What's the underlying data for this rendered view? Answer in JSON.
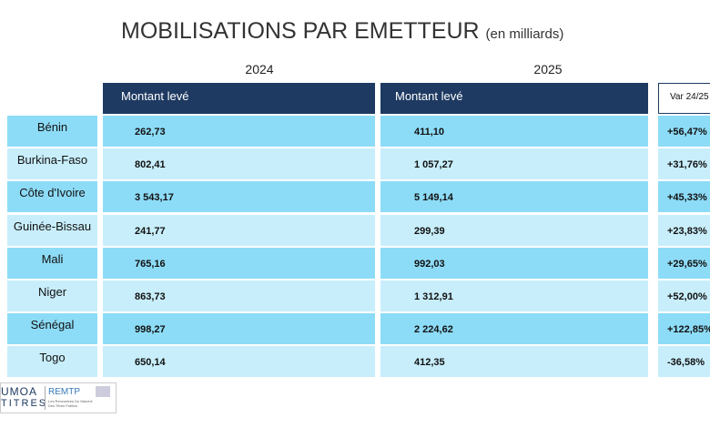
{
  "header": {
    "title": "MOBILISATIONS PAR EMETTEUR",
    "subtitle": "(en milliards)"
  },
  "table": {
    "years": [
      "2024",
      "2025"
    ],
    "columns": [
      "Montant levé",
      "Montant levé",
      "Var 24/25"
    ],
    "rows": [
      [
        "Bénin",
        "262,73",
        "411,10",
        "+56,47%"
      ],
      [
        "Burkina-Faso",
        "802,41",
        "1 057,27",
        "+31,76%"
      ],
      [
        "Côte d'Ivoire",
        "3 543,17",
        "5 149,14",
        "+45,33%"
      ],
      [
        "Guinée-Bissau",
        "241,77",
        "299,39",
        "+23,83%"
      ],
      [
        "Mali",
        "765,16",
        "992,03",
        "+29,65%"
      ],
      [
        "Niger",
        "863,73",
        "1 312,91",
        "+52,00%"
      ],
      [
        "Sénégal",
        "998,27",
        "2 224,62",
        "+122,85%"
      ],
      [
        "Togo",
        "650,14",
        "412,35",
        "-36,58%"
      ]
    ]
  },
  "logo": {
    "left_top": "UMOA",
    "left_bottom": "TITRES",
    "right": "REMTP",
    "tagline": "Les Rencontres Du Marché Des Titres Publics"
  }
}
